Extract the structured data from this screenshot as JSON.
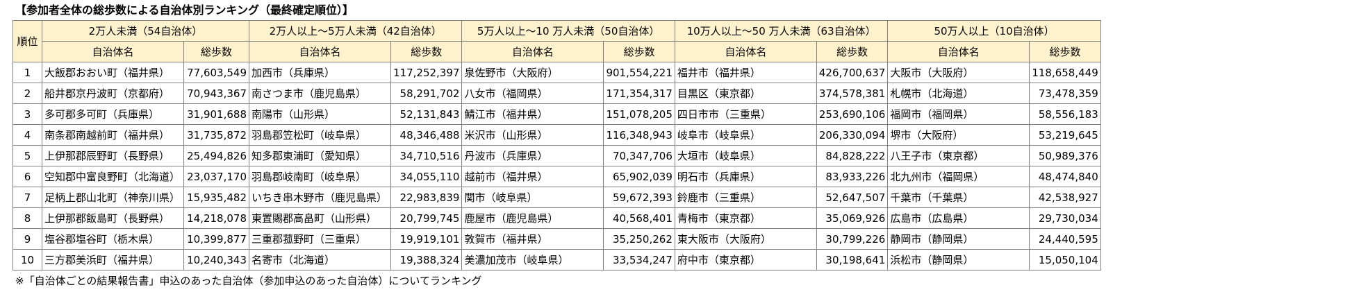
{
  "title": "【参加者全体の総歩数による自治体別ランキング（最終確定順位）】",
  "header": {
    "rank_label": "順位",
    "name_label": "自治体名",
    "steps_label": "総歩数",
    "groups": [
      "2万人未満（54自治体）",
      "2万人以上～5万人未満（42自治体）",
      "5万人以上～10 万人未満（50自治体）",
      "10万人以上～50 万人未満（63自治体）",
      "50万人以上（10自治体）"
    ]
  },
  "rows": [
    {
      "rank": "1",
      "cells": [
        {
          "name": "大飯郡おおい町（福井県）",
          "steps": "77,603,549"
        },
        {
          "name": "加西市（兵庫県）",
          "steps": "117,252,397"
        },
        {
          "name": "泉佐野市（大阪府）",
          "steps": "901,554,221"
        },
        {
          "name": "福井市（福井県）",
          "steps": "426,700,637"
        },
        {
          "name": "大阪市（大阪府）",
          "steps": "118,658,449"
        }
      ]
    },
    {
      "rank": "2",
      "cells": [
        {
          "name": "船井郡京丹波町（京都府）",
          "steps": "70,943,367"
        },
        {
          "name": "南さつま市（鹿児島県）",
          "steps": "58,291,702"
        },
        {
          "name": "八女市（福岡県）",
          "steps": "171,354,317"
        },
        {
          "name": "目黒区（東京都）",
          "steps": "374,578,381"
        },
        {
          "name": "札幌市（北海道）",
          "steps": "73,478,359"
        }
      ]
    },
    {
      "rank": "3",
      "cells": [
        {
          "name": "多可郡多可町（兵庫県）",
          "steps": "31,901,688"
        },
        {
          "name": "南陽市（山形県）",
          "steps": "52,131,843"
        },
        {
          "name": "鯖江市（福井県）",
          "steps": "151,078,205"
        },
        {
          "name": "四日市市（三重県）",
          "steps": "253,690,106"
        },
        {
          "name": "福岡市（福岡県）",
          "steps": "58,556,183"
        }
      ]
    },
    {
      "rank": "4",
      "cells": [
        {
          "name": "南条郡南越前町（福井県）",
          "steps": "31,735,872"
        },
        {
          "name": "羽島郡笠松町（岐阜県）",
          "steps": "48,346,488"
        },
        {
          "name": "米沢市（山形県）",
          "steps": "116,348,943"
        },
        {
          "name": "岐阜市（岐阜県）",
          "steps": "206,330,094"
        },
        {
          "name": "堺市（大阪府）",
          "steps": "53,219,645"
        }
      ]
    },
    {
      "rank": "5",
      "cells": [
        {
          "name": "上伊那郡辰野町（長野県）",
          "steps": "25,494,826"
        },
        {
          "name": "知多郡東浦町（愛知県）",
          "steps": "34,710,516"
        },
        {
          "name": "丹波市（兵庫県）",
          "steps": "70,347,706"
        },
        {
          "name": "大垣市（岐阜県）",
          "steps": "84,828,222"
        },
        {
          "name": "八王子市（東京都）",
          "steps": "50,989,376"
        }
      ]
    },
    {
      "rank": "6",
      "cells": [
        {
          "name": "空知郡中富良野町（北海道）",
          "steps": "23,037,170"
        },
        {
          "name": "羽島郡岐南町（岐阜県）",
          "steps": "34,055,110"
        },
        {
          "name": "越前市（福井県）",
          "steps": "65,902,039"
        },
        {
          "name": "明石市（兵庫県）",
          "steps": "83,933,226"
        },
        {
          "name": "北九州市（福岡県）",
          "steps": "48,474,840"
        }
      ]
    },
    {
      "rank": "7",
      "cells": [
        {
          "name": "足柄上郡山北町（神奈川県）",
          "steps": "15,935,482"
        },
        {
          "name": "いちき串木野市（鹿児島県）",
          "steps": "22,983,839"
        },
        {
          "name": "関市（岐阜県）",
          "steps": "59,672,393"
        },
        {
          "name": "鈴鹿市（三重県）",
          "steps": "52,647,507"
        },
        {
          "name": "千葉市（千葉県）",
          "steps": "42,538,927"
        }
      ]
    },
    {
      "rank": "8",
      "cells": [
        {
          "name": "上伊那郡飯島町（長野県）",
          "steps": "14,218,078"
        },
        {
          "name": "東置賜郡高畠町（山形県）",
          "steps": "20,799,745"
        },
        {
          "name": "鹿屋市（鹿児島県）",
          "steps": "40,568,401"
        },
        {
          "name": "青梅市（東京都）",
          "steps": "35,069,926"
        },
        {
          "name": "広島市（広島県）",
          "steps": "29,730,034"
        }
      ]
    },
    {
      "rank": "9",
      "cells": [
        {
          "name": "塩谷郡塩谷町（栃木県）",
          "steps": "10,399,877"
        },
        {
          "name": "三重郡菰野町（三重県）",
          "steps": "19,919,101"
        },
        {
          "name": "敦賀市（福井県）",
          "steps": "35,250,262"
        },
        {
          "name": "東大阪市（大阪府）",
          "steps": "30,799,226"
        },
        {
          "name": "静岡市（静岡県）",
          "steps": "24,440,595"
        }
      ]
    },
    {
      "rank": "10",
      "cells": [
        {
          "name": "三方郡美浜町（福井県）",
          "steps": "10,240,343"
        },
        {
          "name": "名寄市（北海道）",
          "steps": "19,388,324"
        },
        {
          "name": "美濃加茂市（岐阜県）",
          "steps": "33,534,247"
        },
        {
          "name": "府中市（東京都）",
          "steps": "30,198,641"
        },
        {
          "name": "浜松市（静岡県）",
          "steps": "15,050,104"
        }
      ]
    }
  ],
  "footnote": "※「自治体ごとの結果報告書」申込のあった自治体（参加申込のあった自治体）についてランキング"
}
